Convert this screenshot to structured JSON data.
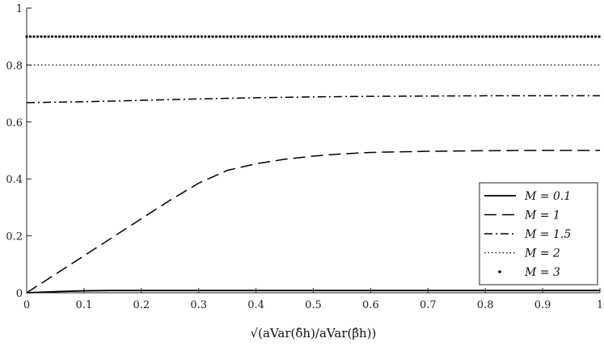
{
  "chart_data": {
    "type": "line",
    "xlim": [
      0,
      1
    ],
    "ylim": [
      0,
      1
    ],
    "x_ticks": [
      "0",
      "0.1",
      "0.2",
      "0.3",
      "0.4",
      "0.5",
      "0.6",
      "0.7",
      "0.8",
      "0.9",
      "1"
    ],
    "y_ticks": [
      "0",
      "0.2",
      "0.4",
      "0.6",
      "0.8",
      "1"
    ],
    "xlabel": "√(aVar(δ̂h)/aVar(β̂h))",
    "ylabel": "",
    "grid": false,
    "legend_position": "bottom-right",
    "series": [
      {
        "name": "M = 0.1",
        "style": "solid",
        "x": [
          0,
          0.05,
          0.1,
          0.15,
          0.2,
          0.3,
          0.5,
          1.0
        ],
        "y": [
          0,
          0.004,
          0.007,
          0.008,
          0.008,
          0.008,
          0.008,
          0.008
        ]
      },
      {
        "name": "M = 1",
        "style": "dashed",
        "x": [
          0,
          0.05,
          0.1,
          0.15,
          0.2,
          0.25,
          0.3,
          0.35,
          0.4,
          0.45,
          0.5,
          0.55,
          0.6,
          0.7,
          0.8,
          0.9,
          1.0
        ],
        "y": [
          0,
          0.065,
          0.13,
          0.195,
          0.26,
          0.325,
          0.385,
          0.43,
          0.453,
          0.469,
          0.48,
          0.488,
          0.493,
          0.497,
          0.499,
          0.5,
          0.5
        ]
      },
      {
        "name": "M = 1.5",
        "style": "dashdot",
        "x": [
          0,
          0.1,
          0.2,
          0.3,
          0.4,
          0.5,
          0.6,
          0.7,
          0.8,
          0.9,
          1.0
        ],
        "y": [
          0.668,
          0.671,
          0.676,
          0.681,
          0.685,
          0.688,
          0.69,
          0.691,
          0.692,
          0.692,
          0.692
        ]
      },
      {
        "name": "M = 2",
        "style": "dotted",
        "x": [
          0,
          1
        ],
        "y": [
          0.8,
          0.8
        ]
      },
      {
        "name": "M = 3",
        "style": "heavy-dotted",
        "x": [
          0,
          1
        ],
        "y": [
          0.9,
          0.9
        ]
      }
    ]
  }
}
